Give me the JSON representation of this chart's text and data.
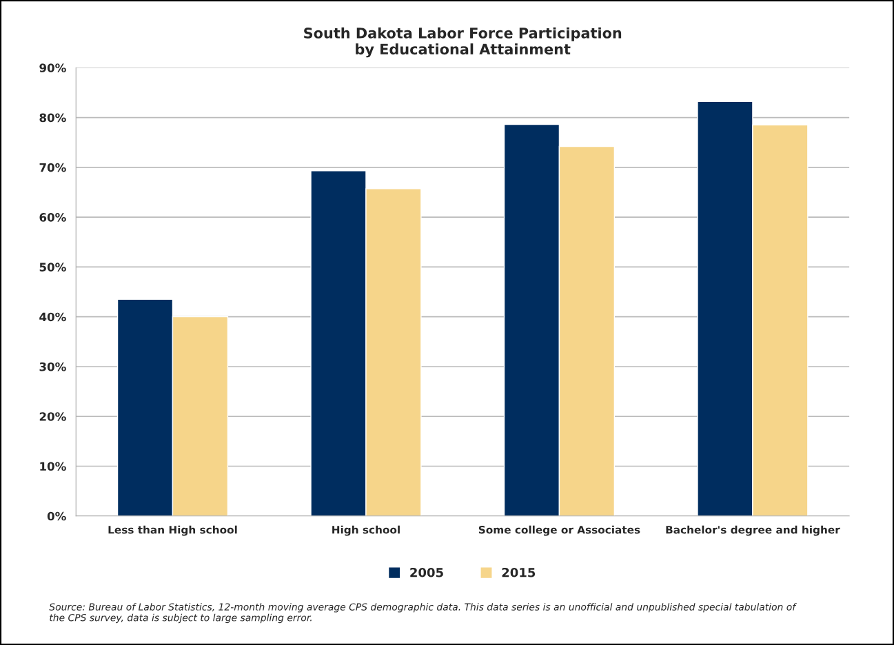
{
  "chart_data": {
    "type": "bar",
    "title": "South Dakota Labor Force Participation\nby Educational Attainment",
    "categories": [
      "Less than High school",
      "High school",
      "Some college or Associates",
      "Bachelor's degree and higher"
    ],
    "series": [
      {
        "name": "2005",
        "color": "#002d5f",
        "values": [
          43.5,
          69.3,
          78.6,
          83.2
        ]
      },
      {
        "name": "2015",
        "color": "#f6d58a",
        "values": [
          40.0,
          65.7,
          74.2,
          78.5
        ]
      }
    ],
    "ylim": [
      0,
      90
    ],
    "yticks": [
      {
        "value": 0,
        "label": "0%"
      },
      {
        "value": 10,
        "label": "10%"
      },
      {
        "value": 20,
        "label": "20%"
      },
      {
        "value": 30,
        "label": "30%"
      },
      {
        "value": 40,
        "label": "40%"
      },
      {
        "value": 50,
        "label": "50%"
      },
      {
        "value": 60,
        "label": "60%"
      },
      {
        "value": 70,
        "label": "70%"
      },
      {
        "value": 80,
        "label": "80%"
      },
      {
        "value": 90,
        "label": "90%"
      }
    ],
    "grid": "y",
    "legend": "bottom",
    "annotations": [
      "Source: Bureau of Labor Statistics, 12-month moving average CPS demographic data. This data series is an unofficial and unpublished special tabulation of the CPS survey, data is subject to large sampling error."
    ]
  }
}
